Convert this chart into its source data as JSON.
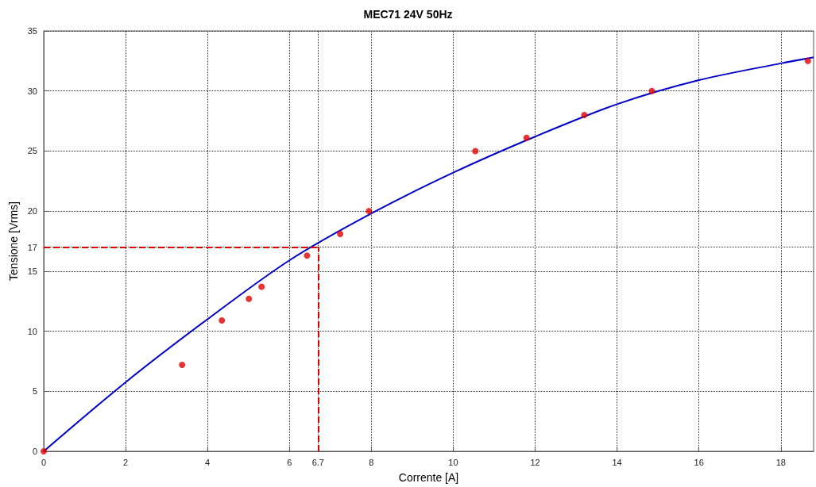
{
  "chart_data": {
    "type": "scatter",
    "title": "MEC71 24V 50Hz",
    "xlabel": "Corrente [A]",
    "ylabel": "Tensione [Vrms]",
    "xlim": [
      0,
      18.8
    ],
    "xticks": [
      0,
      2,
      4,
      6,
      6.7,
      8,
      10,
      12,
      14,
      16,
      18
    ],
    "ylim": [
      0,
      35
    ],
    "yticks": [
      0,
      5,
      10,
      15,
      17,
      20,
      25,
      30,
      35
    ],
    "grid": true,
    "series": [
      {
        "color": "#e00000",
        "marker": "circle",
        "x": [
          0,
          3.38,
          4.35,
          5.01,
          5.32,
          6.43,
          7.24,
          7.94,
          10.54,
          11.79,
          13.2,
          14.85,
          18.66
        ],
        "values": [
          0,
          7.2,
          10.9,
          12.7,
          13.7,
          16.3,
          18.1,
          20.0,
          25.0,
          26.1,
          28.0,
          30.0,
          32.5
        ]
      },
      {
        "type": "line",
        "color": "#0000c8",
        "marker": "none",
        "line_style": "solid",
        "x": [
          0,
          2,
          4,
          6,
          8,
          10,
          12,
          14,
          16,
          18,
          18.8
        ],
        "values": [
          0,
          5.75,
          11.0,
          15.9,
          19.8,
          23.2,
          26.2,
          28.9,
          30.9,
          32.3,
          32.8
        ]
      }
    ],
    "ref_lines": [
      {
        "axis": "y",
        "value": 17,
        "color": "#e00000",
        "line_style": "dashed"
      },
      {
        "axis": "x",
        "value": 6.7,
        "color": "#e00000",
        "line_style": "dashed"
      }
    ]
  }
}
